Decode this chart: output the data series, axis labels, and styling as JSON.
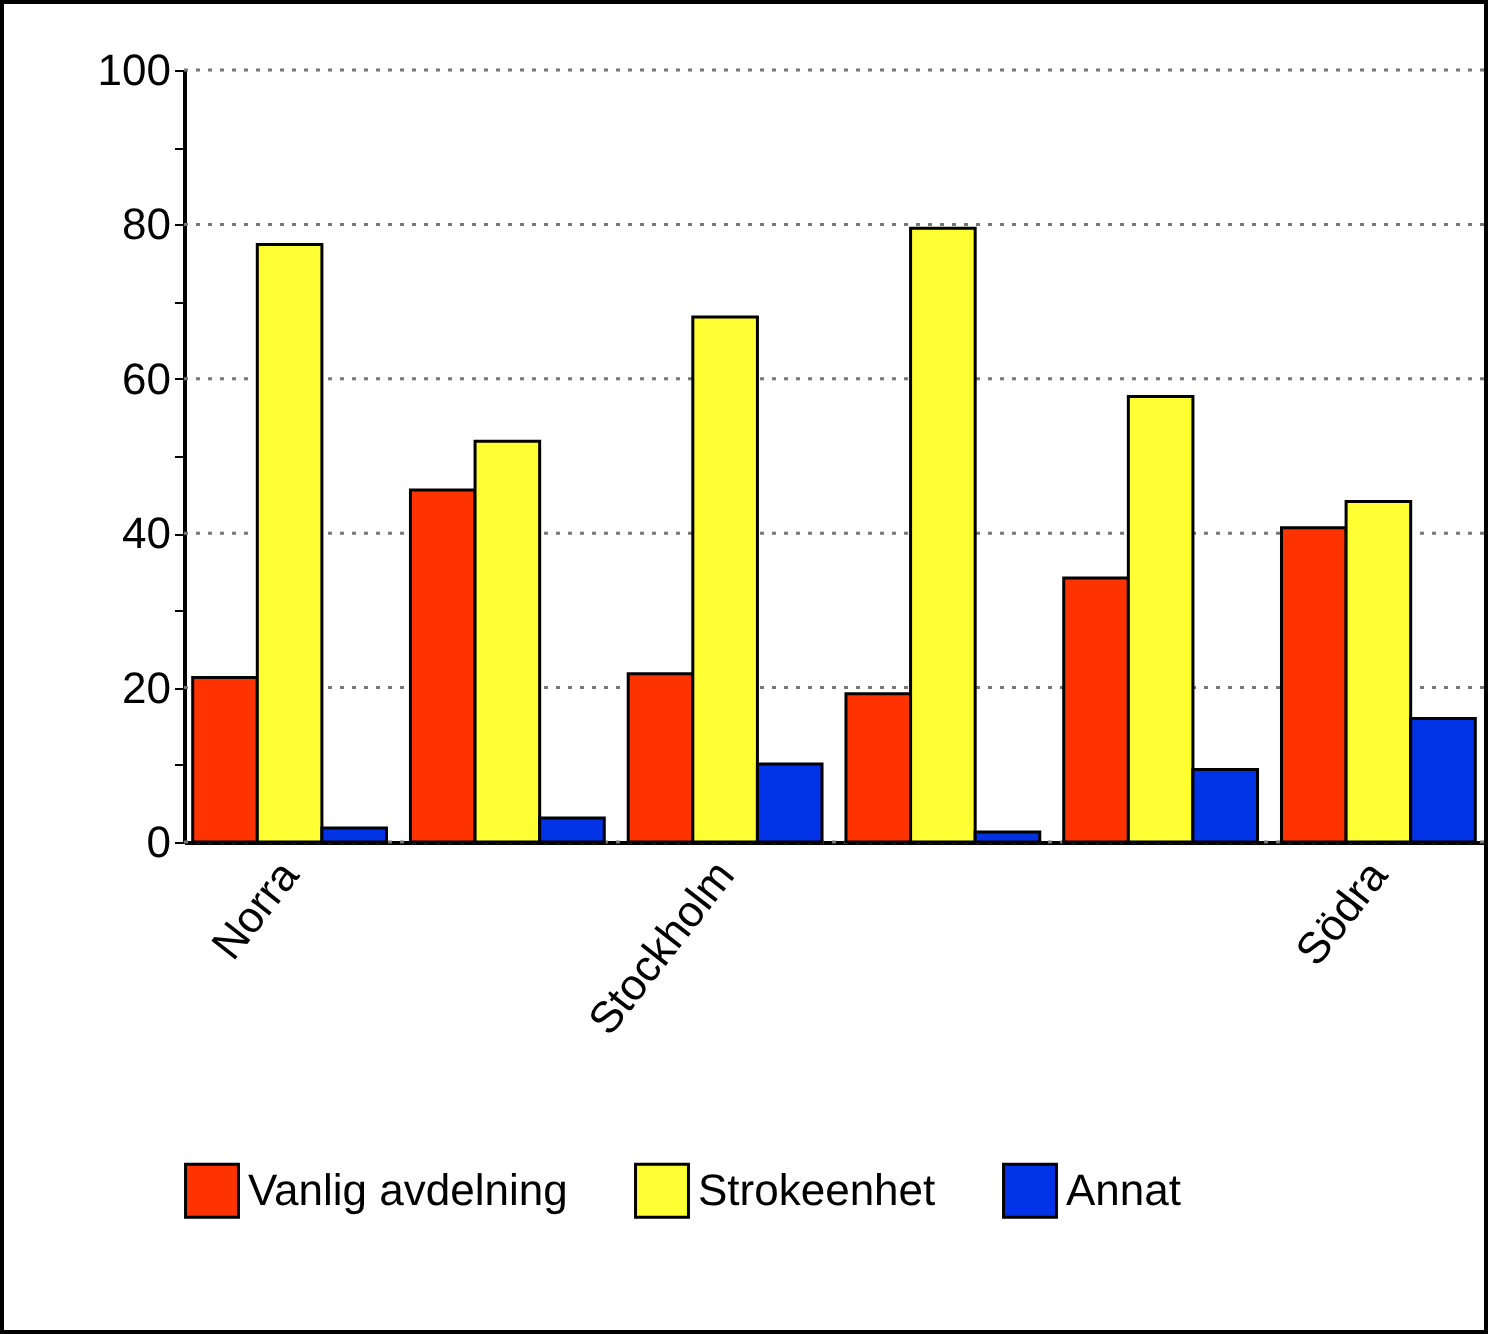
{
  "chart_data": {
    "type": "bar",
    "categories": [
      "Norra",
      null,
      "Stockholm",
      null,
      null,
      "Södra"
    ],
    "series": [
      {
        "name": "Vanlig avdelning",
        "color": "#ff3300",
        "values": [
          21.3,
          45.6,
          21.8,
          19.2,
          34.2,
          40.7
        ]
      },
      {
        "name": "Strokeenhet",
        "color": "#ffff33",
        "values": [
          77.4,
          51.9,
          68.0,
          79.5,
          57.7,
          44.1
        ]
      },
      {
        "name": "Annat",
        "color": "#0033e6",
        "values": [
          1.8,
          3.1,
          10.1,
          1.3,
          9.4,
          16.0
        ]
      }
    ],
    "ylim": [
      0,
      100
    ],
    "yticks": [
      0,
      {
        "value": 10,
        "label": null
      },
      20,
      {
        "value": 30,
        "label": null
      },
      40,
      {
        "value": 50,
        "label": null
      },
      60,
      {
        "value": 70,
        "label": null
      },
      80,
      {
        "value": 90,
        "label": null
      },
      100
    ],
    "grid": "y",
    "legend": "bottom"
  }
}
